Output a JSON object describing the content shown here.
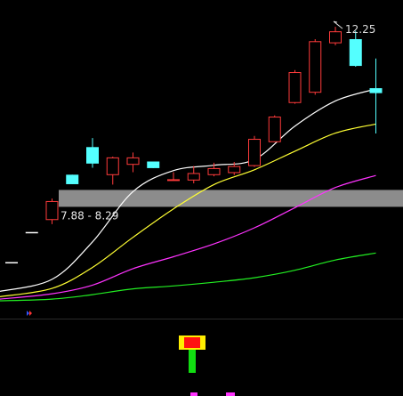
{
  "chart_data": {
    "type": "candlestick",
    "price_range": [
      5.6,
      12.9
    ],
    "annotations": {
      "high_label": "12.25",
      "zone_label": "7.88 - 8.29",
      "zone_low": 7.88,
      "zone_high": 8.29
    },
    "candles": [
      {
        "o": 6.55,
        "h": 6.55,
        "l": 6.55,
        "c": 6.55
      },
      {
        "o": 7.28,
        "h": 7.28,
        "l": 7.28,
        "c": 7.28
      },
      {
        "o": 7.56,
        "h": 8.08,
        "l": 7.46,
        "c": 8.02
      },
      {
        "o": 8.66,
        "h": 8.66,
        "l": 8.43,
        "c": 8.43
      },
      {
        "o": 9.33,
        "h": 9.55,
        "l": 8.83,
        "c": 8.93
      },
      {
        "o": 8.65,
        "h": 9.1,
        "l": 8.42,
        "c": 9.08
      },
      {
        "o": 8.9,
        "h": 9.2,
        "l": 8.72,
        "c": 9.08
      },
      {
        "o": 8.98,
        "h": 8.98,
        "l": 8.82,
        "c": 8.82
      },
      {
        "o": 8.55,
        "h": 8.72,
        "l": 8.53,
        "c": 8.55
      },
      {
        "o": 8.52,
        "h": 8.87,
        "l": 8.45,
        "c": 8.7
      },
      {
        "o": 8.65,
        "h": 8.95,
        "l": 8.62,
        "c": 8.82
      },
      {
        "o": 8.7,
        "h": 8.97,
        "l": 8.65,
        "c": 8.87
      },
      {
        "o": 8.87,
        "h": 9.6,
        "l": 8.85,
        "c": 9.53
      },
      {
        "o": 9.45,
        "h": 10.1,
        "l": 9.45,
        "c": 10.07
      },
      {
        "o": 10.4,
        "h": 11.2,
        "l": 10.38,
        "c": 11.15
      },
      {
        "o": 10.65,
        "h": 11.95,
        "l": 10.6,
        "c": 11.9
      },
      {
        "o": 11.85,
        "h": 12.25,
        "l": 11.8,
        "c": 12.14
      },
      {
        "o": 11.95,
        "h": 12.15,
        "l": 11.28,
        "c": 11.3
      },
      {
        "o": 10.76,
        "h": 11.48,
        "l": 9.66,
        "c": 10.64
      }
    ],
    "series": [
      {
        "color": "#ffffff",
        "x": [
          0,
          2,
          4,
          6,
          8,
          10,
          12,
          14,
          16,
          18
        ],
        "values": [
          5.83,
          6.12,
          7.03,
          8.25,
          8.76,
          8.89,
          9.03,
          9.84,
          10.45,
          10.74
        ]
      },
      {
        "color": "#ffff33",
        "x": [
          0,
          2,
          4,
          6,
          8,
          10,
          12,
          14,
          16,
          18
        ],
        "values": [
          5.7,
          5.9,
          6.41,
          7.14,
          7.83,
          8.42,
          8.78,
          9.23,
          9.67,
          9.89
        ]
      },
      {
        "color": "#ff33ff",
        "x": [
          0,
          2,
          4,
          6,
          8,
          10,
          12,
          14,
          16,
          18
        ],
        "values": [
          5.64,
          5.77,
          5.98,
          6.38,
          6.67,
          6.98,
          7.37,
          7.86,
          8.35,
          8.64
        ]
      },
      {
        "color": "#22ee22",
        "x": [
          0,
          2,
          4,
          6,
          8,
          10,
          12,
          14,
          16,
          18
        ],
        "values": [
          5.6,
          5.64,
          5.75,
          5.89,
          5.96,
          6.05,
          6.16,
          6.34,
          6.59,
          6.76
        ]
      }
    ]
  }
}
